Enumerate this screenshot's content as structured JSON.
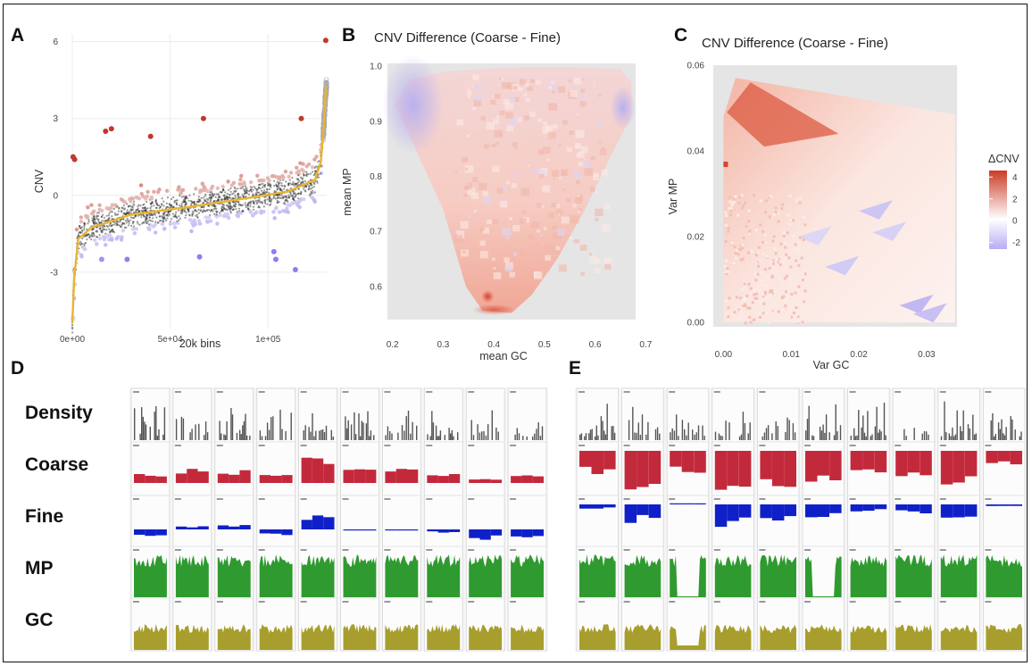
{
  "panels": {
    "A": {
      "letter": "A"
    },
    "B": {
      "letter": "B"
    },
    "C": {
      "letter": "C"
    },
    "D": {
      "letter": "D"
    },
    "E": {
      "letter": "E"
    }
  },
  "chart_data": [
    {
      "panel": "A",
      "type": "scatter",
      "title": "",
      "xlabel": "20k bins",
      "ylabel": "CNV",
      "xlim": [
        0,
        130000
      ],
      "ylim": [
        -5.2,
        6.3
      ],
      "x_ticks": [
        0,
        50000,
        100000
      ],
      "x_tick_labels": [
        "0e+00",
        "5e+04",
        "1e+05"
      ],
      "y_ticks": [
        -3,
        0,
        3,
        6
      ],
      "y_tick_labels": [
        "-3",
        "0",
        "3",
        "6"
      ],
      "grid": true,
      "point_color_scale": {
        "low": "#8c7ff0",
        "mid": "#f2f2f2",
        "high": "#c0392b"
      },
      "trend_color": "#e8b530",
      "trend_points": [
        [
          0,
          -5.0
        ],
        [
          1000,
          -3.2
        ],
        [
          3000,
          -1.7
        ],
        [
          10000,
          -1.25
        ],
        [
          30000,
          -0.75
        ],
        [
          60000,
          -0.45
        ],
        [
          90000,
          -0.1
        ],
        [
          110000,
          0.15
        ],
        [
          124000,
          0.6
        ],
        [
          127000,
          1.3
        ],
        [
          128500,
          2.7
        ],
        [
          129700,
          4.3
        ]
      ],
      "outliers": [
        [
          400,
          1.5
        ],
        [
          1200,
          1.4
        ],
        [
          17000,
          2.5
        ],
        [
          20000,
          2.6
        ],
        [
          40000,
          2.3
        ],
        [
          67000,
          3.0
        ],
        [
          117000,
          3.0
        ],
        [
          129500,
          6.05
        ],
        [
          15000,
          -2.5
        ],
        [
          28000,
          -2.5
        ],
        [
          65000,
          -2.4
        ],
        [
          103000,
          -2.2
        ],
        [
          104000,
          -2.5
        ],
        [
          114000,
          -2.9
        ],
        [
          300,
          -4.8
        ]
      ]
    },
    {
      "panel": "B",
      "type": "heatmap",
      "title": "CNV Difference (Coarse - Fine)",
      "xlabel": "mean GC",
      "ylabel": "mean MP",
      "xlim": [
        0.19,
        0.68
      ],
      "ylim": [
        0.54,
        1.005
      ],
      "x_ticks": [
        0.2,
        0.3,
        0.4,
        0.5,
        0.6,
        0.7
      ],
      "x_tick_labels": [
        "0.2",
        "0.3",
        "0.4",
        "0.5",
        "0.6",
        "0.7"
      ],
      "y_ticks": [
        0.6,
        0.7,
        0.8,
        0.9,
        1.0
      ],
      "y_tick_labels": [
        "0.6",
        "0.7",
        "0.8",
        "0.9",
        "1.0"
      ],
      "hull": [
        [
          0.205,
          0.93
        ],
        [
          0.235,
          0.975
        ],
        [
          0.3,
          0.99
        ],
        [
          0.45,
          0.998
        ],
        [
          0.555,
          0.998
        ],
        [
          0.65,
          0.995
        ],
        [
          0.672,
          0.97
        ],
        [
          0.672,
          0.91
        ],
        [
          0.63,
          0.835
        ],
        [
          0.58,
          0.74
        ],
        [
          0.525,
          0.65
        ],
        [
          0.475,
          0.585
        ],
        [
          0.435,
          0.552
        ],
        [
          0.378,
          0.556
        ],
        [
          0.345,
          0.6
        ],
        [
          0.3,
          0.74
        ],
        [
          0.25,
          0.84
        ]
      ]
    },
    {
      "panel": "C",
      "type": "heatmap",
      "title": "CNV Difference (Coarse - Fine)",
      "xlabel": "Var GC",
      "ylabel": "Var MP",
      "xlim": [
        -0.0015,
        0.0345
      ],
      "ylim": [
        -0.001,
        0.06
      ],
      "x_ticks": [
        0,
        0.01,
        0.02,
        0.03
      ],
      "x_tick_labels": [
        "0.00",
        "0.01",
        "0.02",
        "0.03"
      ],
      "y_ticks": [
        0,
        0.02,
        0.04,
        0.06
      ],
      "y_tick_labels": [
        "0.00",
        "0.02",
        "0.04",
        "0.06"
      ],
      "hull": [
        [
          0.0,
          0.0
        ],
        [
          0.0,
          0.048
        ],
        [
          0.0018,
          0.057
        ],
        [
          0.0342,
          0.0485
        ],
        [
          0.0342,
          0.0
        ]
      ],
      "legend": {
        "title": "ΔCNV",
        "ticks": [
          4,
          2,
          0,
          -2
        ],
        "tick_labels": [
          "4",
          "2",
          "0",
          "-2"
        ],
        "placement": "right"
      },
      "color_scale": {
        "low": "#b9adf2",
        "mid": "#ffffff",
        "high": "#cc3b25"
      }
    },
    {
      "panel": "D",
      "type": "table",
      "tracks": [
        "Density",
        "Coarse",
        "Fine",
        "MP",
        "GC"
      ],
      "track_colors": {
        "Density": "#555555",
        "Coarse": "#c22a3c",
        "Fine": "#1020c8",
        "MP": "#2f9a2f",
        "GC": "#a89e2d"
      },
      "loci_count": 10,
      "coarse_levels": [
        0.35,
        0.55,
        0.5,
        0.35,
        1.0,
        0.55,
        0.55,
        0.35,
        0.15,
        0.3
      ],
      "fine_levels": [
        -0.5,
        0.25,
        0.3,
        -0.35,
        0.9,
        -0.05,
        -0.05,
        -0.2,
        -0.7,
        -0.5
      ]
    },
    {
      "panel": "E",
      "type": "table",
      "tracks": [
        "Density",
        "Coarse",
        "Fine",
        "MP",
        "GC"
      ],
      "loci_count": 10,
      "coarse_levels": [
        -0.6,
        -1.0,
        -0.6,
        -1.0,
        -1.0,
        -0.8,
        -0.7,
        -0.7,
        -1.0,
        -0.4
      ],
      "fine_levels": [
        -0.2,
        -0.9,
        0.0,
        -1.0,
        -0.8,
        -0.7,
        -0.4,
        -0.4,
        -0.6,
        -0.1
      ]
    }
  ]
}
